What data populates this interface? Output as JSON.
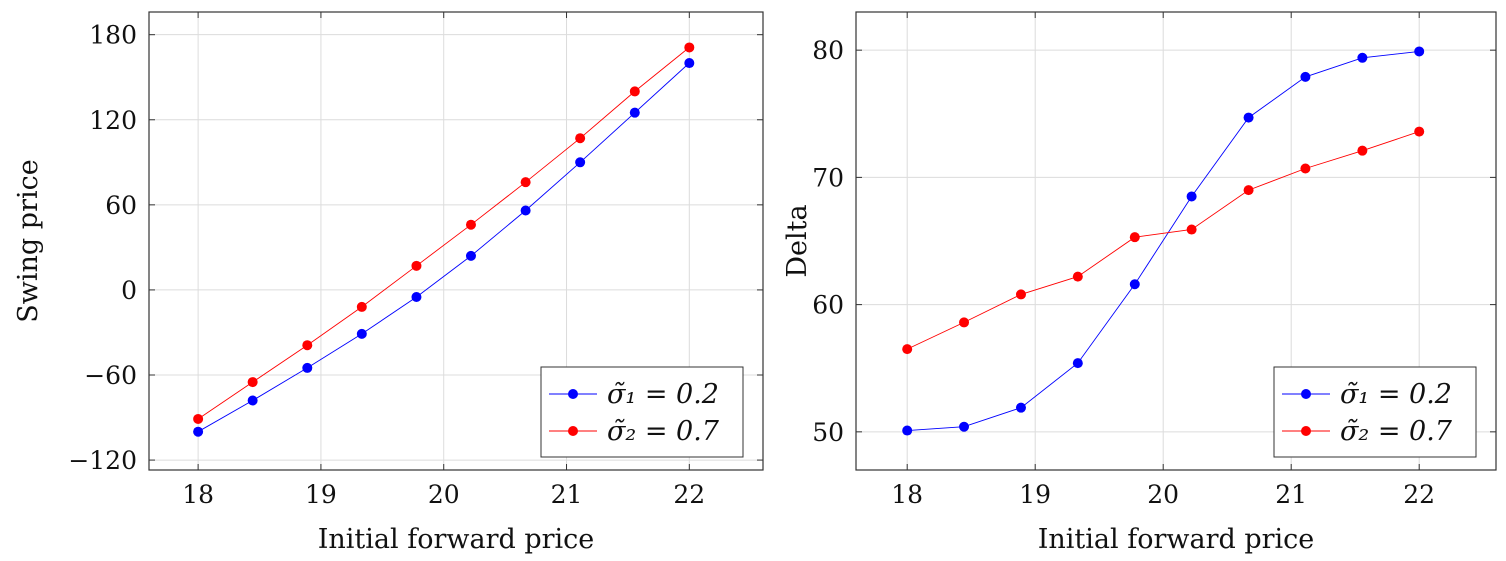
{
  "chart_data": [
    {
      "type": "line",
      "xlabel": "Initial forward price",
      "ylabel": "Swing price",
      "xlim": [
        17.6,
        22.6
      ],
      "ylim": [
        -127,
        196
      ],
      "xticks": [
        18,
        19,
        20,
        21,
        22
      ],
      "xtick_labels": [
        "18",
        "19",
        "20",
        "21",
        "22"
      ],
      "yticks": [
        -120,
        -60,
        0,
        60,
        120,
        180
      ],
      "ytick_labels": [
        "−120",
        "−60",
        "0",
        "60",
        "120",
        "180"
      ],
      "grid": true,
      "legend_position": "bottom-right",
      "x": [
        18,
        18.444,
        18.889,
        19.333,
        19.778,
        20.222,
        20.667,
        21.111,
        21.556,
        22
      ],
      "series": [
        {
          "name": "σ̃₁ = 0.2",
          "color": "#0000ff",
          "values": [
            -100,
            -78,
            -55,
            -31,
            -5,
            24,
            56,
            90,
            125,
            160
          ]
        },
        {
          "name": "σ̃₂ = 0.7",
          "color": "#ff0000",
          "values": [
            -91,
            -65,
            -39,
            -12,
            17,
            46,
            76,
            107,
            140,
            171
          ]
        }
      ]
    },
    {
      "type": "line",
      "xlabel": "Initial forward price",
      "ylabel": "Delta",
      "xlim": [
        17.6,
        22.6
      ],
      "ylim": [
        47,
        83
      ],
      "xticks": [
        18,
        19,
        20,
        21,
        22
      ],
      "xtick_labels": [
        "18",
        "19",
        "20",
        "21",
        "22"
      ],
      "yticks": [
        50,
        60,
        70,
        80
      ],
      "ytick_labels": [
        "50",
        "60",
        "70",
        "80"
      ],
      "grid": true,
      "legend_position": "bottom-right",
      "x": [
        18,
        18.444,
        18.889,
        19.333,
        19.778,
        20.222,
        20.667,
        21.111,
        21.556,
        22
      ],
      "series": [
        {
          "name": "σ̃₁ = 0.2",
          "color": "#0000ff",
          "values": [
            50.1,
            50.4,
            51.9,
            55.4,
            61.6,
            68.5,
            74.7,
            77.9,
            79.4,
            79.9
          ]
        },
        {
          "name": "σ̃₂ = 0.7",
          "color": "#ff0000",
          "values": [
            56.5,
            58.6,
            60.8,
            62.2,
            65.3,
            65.9,
            69.0,
            70.7,
            72.1,
            73.6
          ]
        }
      ]
    }
  ]
}
